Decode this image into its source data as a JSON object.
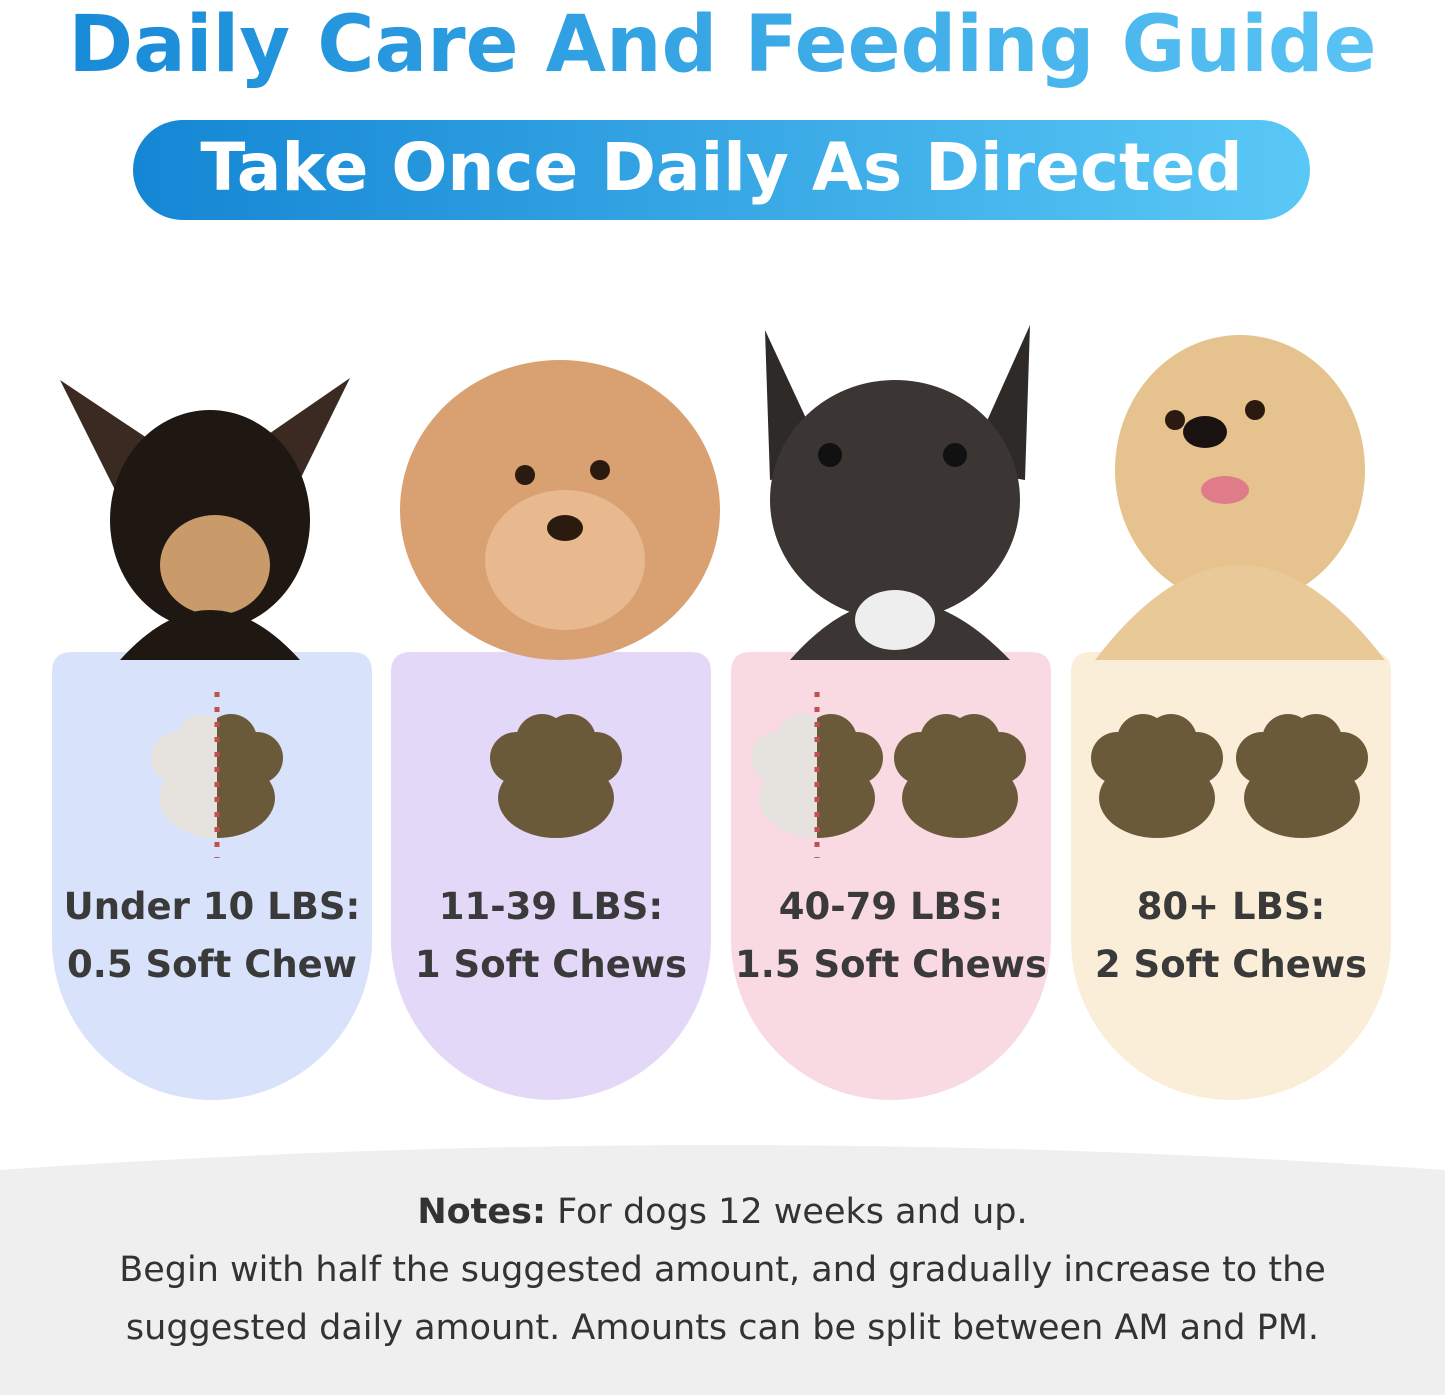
{
  "header": {
    "title": "Daily Care And Feeding Guide",
    "subtitle": "Take Once Daily As Directed"
  },
  "cards": [
    {
      "weight": "Under 10 LBS:",
      "dose": "0.5 Soft Chew"
    },
    {
      "weight": "11-39 LBS:",
      "dose": "1 Soft Chews"
    },
    {
      "weight": "40-79 LBS:",
      "dose": "1.5 Soft Chews"
    },
    {
      "weight": "80+ LBS:",
      "dose": "2 Soft Chews"
    }
  ],
  "notes": {
    "label": "Notes:",
    "first": "For dogs 12 weeks and up.",
    "lines": [
      "Begin with half the suggested amount, and gradually increase to the",
      "suggested daily amount. Amounts can be split between AM and PM."
    ]
  }
}
